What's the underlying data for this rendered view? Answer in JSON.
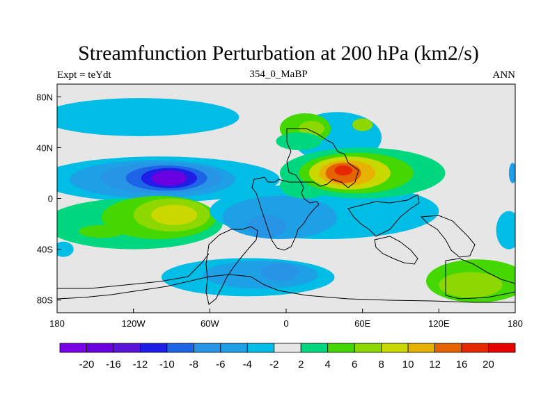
{
  "title": "Streamfunction Perturbation at 200 hPa (km2/s)",
  "left_label": "Expt = teYdt",
  "center_label": "354_0_MaBP",
  "right_label": "ANN",
  "map": {
    "projection": "cylindrical equidistant",
    "lon_range": [
      -180,
      180
    ],
    "lat_range": [
      -90,
      90
    ],
    "background_color": "#e6e6e6",
    "coastline_color": "#000000"
  },
  "x_ticks": [
    {
      "lon": -180,
      "label": "180"
    },
    {
      "lon": -120,
      "label": "120W"
    },
    {
      "lon": -60,
      "label": "60W"
    },
    {
      "lon": 0,
      "label": "0"
    },
    {
      "lon": 60,
      "label": "60E"
    },
    {
      "lon": 120,
      "label": "120E"
    },
    {
      "lon": 180,
      "label": "180"
    }
  ],
  "y_ticks": [
    {
      "lat": 80,
      "label": "80N"
    },
    {
      "lat": 40,
      "label": "40N"
    },
    {
      "lat": 0,
      "label": "0"
    },
    {
      "lat": -40,
      "label": "40S"
    },
    {
      "lat": -80,
      "label": "80S"
    }
  ],
  "colorbar": {
    "colors": [
      "#7a00e6",
      "#6a00e0",
      "#5a14d8",
      "#1e1ee6",
      "#1e64e6",
      "#2894e6",
      "#1ea0e6",
      "#00bde6",
      "#e6e6e6",
      "#00d77e",
      "#44d800",
      "#8cd800",
      "#c8d800",
      "#e6b400",
      "#e66400",
      "#e62800",
      "#e60000"
    ],
    "labels": [
      "-20",
      "-16",
      "-12",
      "-10",
      "-8",
      "-6",
      "-4",
      "-2",
      "2",
      "4",
      "6",
      "8",
      "10",
      "12",
      "16",
      "20"
    ]
  },
  "fields": [
    {
      "lon": -115,
      "lat": 64,
      "rx": 78,
      "ry": 15,
      "level": 7
    },
    {
      "lon": -175,
      "lat": -40,
      "rx": 8,
      "ry": 6,
      "level": 7
    },
    {
      "lon": -100,
      "lat": 15,
      "rx": 95,
      "ry": 18,
      "level": 7
    },
    {
      "lon": -105,
      "lat": 15,
      "rx": 65,
      "ry": 15,
      "level": 6
    },
    {
      "lon": -98,
      "lat": 16,
      "rx": 48,
      "ry": 12,
      "level": 5
    },
    {
      "lon": -94,
      "lat": 16,
      "rx": 32,
      "ry": 10,
      "level": 4
    },
    {
      "lon": -92,
      "lat": 16,
      "rx": 22,
      "ry": 8,
      "level": 3
    },
    {
      "lon": -92,
      "lat": 16,
      "rx": 14,
      "ry": 6,
      "level": 1
    },
    {
      "lon": -120,
      "lat": -20,
      "rx": 70,
      "ry": 20,
      "level": 9
    },
    {
      "lon": -100,
      "lat": -15,
      "rx": 45,
      "ry": 17,
      "level": 10
    },
    {
      "lon": -90,
      "lat": -13,
      "rx": 30,
      "ry": 13,
      "level": 11
    },
    {
      "lon": -88,
      "lat": -13,
      "rx": 18,
      "ry": 8,
      "level": 12
    },
    {
      "lon": -145,
      "lat": -26,
      "rx": 18,
      "ry": 5,
      "level": 10
    },
    {
      "lon": 30,
      "lat": -10,
      "rx": 90,
      "ry": 22,
      "level": 7
    },
    {
      "lon": -5,
      "lat": -15,
      "rx": 45,
      "ry": 17,
      "level": 6
    },
    {
      "lon": -15,
      "lat": -22,
      "rx": 15,
      "ry": 9,
      "level": 5
    },
    {
      "lon": -30,
      "lat": -62,
      "rx": 68,
      "ry": 15,
      "level": 7
    },
    {
      "lon": -20,
      "lat": -60,
      "rx": 45,
      "ry": 11,
      "level": 6
    },
    {
      "lon": -5,
      "lat": -58,
      "rx": 15,
      "ry": 7,
      "level": 5
    },
    {
      "lon": 40,
      "lat": 48,
      "rx": 35,
      "ry": 20,
      "level": 7
    },
    {
      "lon": 15,
      "lat": 55,
      "rx": 20,
      "ry": 12,
      "level": 10
    },
    {
      "lon": 20,
      "lat": 55,
      "rx": 10,
      "ry": 6,
      "level": 11
    },
    {
      "lon": 60,
      "lat": 58,
      "rx": 8,
      "ry": 5,
      "level": 11
    },
    {
      "lon": 10,
      "lat": 45,
      "rx": 18,
      "ry": 7,
      "level": 9
    },
    {
      "lon": 15,
      "lat": 10,
      "rx": 20,
      "ry": 10,
      "level": 9
    },
    {
      "lon": 60,
      "lat": 20,
      "rx": 65,
      "ry": 20,
      "level": 9
    },
    {
      "lon": 55,
      "lat": 20,
      "rx": 45,
      "ry": 16,
      "level": 10
    },
    {
      "lon": 50,
      "lat": 20,
      "rx": 32,
      "ry": 13,
      "level": 12
    },
    {
      "lon": 48,
      "lat": 20,
      "rx": 22,
      "ry": 10,
      "level": 13
    },
    {
      "lon": 45,
      "lat": 20,
      "rx": 14,
      "ry": 8,
      "level": 14
    },
    {
      "lon": 45,
      "lat": 22,
      "rx": 7,
      "ry": 4,
      "level": 15
    },
    {
      "lon": 175,
      "lat": -25,
      "rx": 10,
      "ry": 15,
      "level": 7
    },
    {
      "lon": 178,
      "lat": 20,
      "rx": 3,
      "ry": 8,
      "level": 6
    },
    {
      "lon": 150,
      "lat": -65,
      "rx": 40,
      "ry": 17,
      "level": 10
    },
    {
      "lon": 145,
      "lat": -68,
      "rx": 25,
      "ry": 10,
      "level": 11
    }
  ]
}
